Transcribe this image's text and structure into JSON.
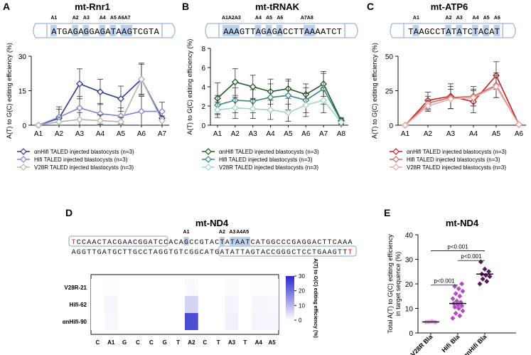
{
  "chart_data": [
    {
      "panel": "A",
      "type": "line",
      "title": "mt-Rnr1",
      "sequence": "ATGAGAGGAGATAAGTCGTA",
      "site_labels": [
        "A1",
        "A2",
        "A3",
        "A4",
        "A5",
        "A6A7"
      ],
      "highlight_positions": [
        0,
        4,
        6,
        9,
        11,
        13,
        14
      ],
      "categories": [
        "A1",
        "A2",
        "A3",
        "A4",
        "A5",
        "A6",
        "A7"
      ],
      "ylabel": "A(T) to G(C) editing efficiency (%)",
      "ylim": [
        0,
        30
      ],
      "yticks": [
        0,
        15,
        30
      ],
      "series": [
        {
          "name": "αnHifi TALED injected blastocysts (n=3)",
          "color": "#2b3a9a",
          "values": [
            0,
            3,
            18,
            14.5,
            11.5,
            20,
            3
          ],
          "err": [
            0,
            5,
            6.5,
            5.5,
            5.5,
            6.5,
            3
          ]
        },
        {
          "name": "Hifi TALED injected blastocysts (n=3)",
          "color": "#7d84d0",
          "values": [
            0,
            3.5,
            7.5,
            5,
            4,
            6,
            6
          ],
          "err": [
            0,
            3.5,
            5,
            4.5,
            3.5,
            6.5,
            4
          ]
        },
        {
          "name": "V28R TALED injected blastocysts (n=3)",
          "color": "#b4b4b4",
          "values": [
            0,
            1.5,
            2.5,
            2,
            1.5,
            20,
            2
          ],
          "err": [
            0,
            2,
            3,
            2.5,
            2,
            7,
            2
          ]
        }
      ]
    },
    {
      "panel": "B",
      "type": "line",
      "title": "mt-tRNAK",
      "sequence": "AAAGTTAGAGACCTTAAAATCT",
      "site_labels": [
        "A1A2A3",
        "A4",
        "A5",
        "A6",
        "A7A8"
      ],
      "highlight_positions": [
        0,
        1,
        2,
        6,
        8,
        10,
        15,
        16
      ],
      "categories": [
        "A1",
        "A2",
        "A3",
        "A4",
        "A5",
        "A6",
        "A7",
        "A8"
      ],
      "ylabel": "A(T) to G(C) editing efficiency (%)",
      "ylim": [
        0,
        8
      ],
      "yticks": [
        0,
        2,
        4,
        6,
        8
      ],
      "series": [
        {
          "name": "αnHifi TALED injected blastocysts (n=3)",
          "color": "#1f5a22",
          "values": [
            2.8,
            4.5,
            4,
            3.5,
            3.8,
            3.2,
            4.3,
            0.5
          ],
          "err": [
            1.6,
            1.4,
            1.2,
            1.3,
            1,
            1.1,
            1.3,
            0.3
          ]
        },
        {
          "name": "Hifi TALED injected blastocysts (n=3)",
          "color": "#2e8a7a",
          "values": [
            2.1,
            2.6,
            2.5,
            2.9,
            3.1,
            2.6,
            3.8,
            0.4
          ],
          "err": [
            1,
            1.3,
            1.2,
            1.4,
            1.5,
            1.3,
            1.6,
            0.3
          ]
        },
        {
          "name": "V28R TALED injected blastocysts (n=3)",
          "color": "#a3d4c8",
          "values": [
            1.6,
            1.8,
            1.7,
            1.6,
            1.3,
            2.1,
            2.6,
            0.3
          ],
          "err": [
            0.8,
            1.1,
            1,
            1,
            0.9,
            1.2,
            1.3,
            0.2
          ]
        }
      ]
    },
    {
      "panel": "C",
      "type": "line",
      "title": "mt-ATP6",
      "sequence": "TAAGCCTATATCTACAT",
      "site_labels": [
        "A1",
        "A2",
        "A3",
        "A4",
        "A5",
        "A6"
      ],
      "highlight_positions": [
        1,
        7,
        9,
        12,
        14,
        16
      ],
      "categories": [
        "A1",
        "A2",
        "A3",
        "A4",
        "A5",
        "A6"
      ],
      "ylabel": "A(T) to G(C) editing efficiency (%)",
      "ylim": [
        0,
        50
      ],
      "yticks": [
        0,
        25,
        50
      ],
      "series": [
        {
          "name": "αnHifi TALED injected blastocysts (n=3)",
          "color": "#c81c1c",
          "values": [
            0,
            18,
            21,
            17,
            36,
            0.5
          ],
          "err": [
            0,
            6,
            9,
            8,
            10,
            0.5
          ]
        },
        {
          "name": "Hifi TALED injected blastocysts (n=3)",
          "color": "#c86a6a",
          "values": [
            0,
            16,
            20,
            21,
            29,
            0.5
          ],
          "err": [
            0,
            5,
            8,
            7,
            9,
            0.5
          ]
        },
        {
          "name": "V28R TALED injected blastocysts (n=3)",
          "color": "#e8aaa0",
          "values": [
            0,
            14,
            19,
            20,
            28,
            0.5
          ],
          "err": [
            0,
            4,
            7,
            6,
            8,
            0.5
          ]
        }
      ]
    },
    {
      "panel": "D",
      "type": "heatmap",
      "title": "mt-ND4",
      "top_strand": "TCCAACTACGAACGGATCCACAGCCGTACTATAATCATGGCCCGAGGACTTCAAA",
      "bottom_strand": "AGGTTGATGCTTGCCTAGGTGTCGGCATGATATTAGTACCGGGCTCCTGAAGTTT",
      "site_labels": [
        "A1",
        "A2",
        "A3",
        "A4A5"
      ],
      "rows": [
        "V28R-21",
        "Hifi-62",
        "αnHifi-90"
      ],
      "columns": [
        "C",
        "A1",
        "G",
        "C",
        "C",
        "G",
        "T",
        "A2",
        "C",
        "T",
        "A3",
        "T",
        "A4",
        "A5"
      ],
      "values": [
        [
          0,
          0.3,
          0,
          0,
          0,
          0,
          0,
          0.8,
          0,
          0,
          0.4,
          0,
          0.3,
          0.3
        ],
        [
          0,
          1.2,
          0,
          0,
          0,
          0,
          0,
          6,
          0,
          0,
          1.5,
          0,
          1.2,
          1
        ],
        [
          0,
          1,
          0,
          0,
          0,
          0,
          0,
          25,
          0,
          0,
          1.8,
          0,
          1.4,
          1.1
        ]
      ],
      "colorbar": {
        "label": "A(T) to G(C) editing efficiency (%)",
        "ticks": [
          0,
          10,
          20,
          30
        ],
        "max": 30
      }
    },
    {
      "panel": "E",
      "type": "scatter",
      "title": "mt-ND4",
      "ylabel": "Total A(T) to G(C) editing efficiency in target sequence (%)",
      "ylim": [
        0,
        40
      ],
      "yticks": [
        0,
        10,
        20,
        30,
        40
      ],
      "categories": [
        "V28R Bla",
        "Hifi Bla",
        "αnHifi Bla"
      ],
      "groups": [
        {
          "name": "V28R Bla",
          "color": "#e8a4e8",
          "median": 4.5,
          "points": [
            4.4,
            4.6,
            4.5,
            4.3,
            4.7,
            4.5,
            4.4,
            4.6
          ]
        },
        {
          "name": "Hifi Bla",
          "color": "#b14ac4",
          "median": 12,
          "points": [
            6,
            7,
            8,
            9,
            10,
            10.5,
            11,
            11.5,
            12,
            12.5,
            13,
            14,
            15,
            16,
            17,
            18,
            19,
            20
          ]
        },
        {
          "name": "αnHifi Bla",
          "color": "#5a1460",
          "median": 24,
          "points": [
            20,
            21,
            22,
            23,
            23.5,
            24,
            25,
            26,
            29
          ]
        }
      ],
      "comparisons": [
        {
          "pair": [
            0,
            2
          ],
          "label": "p<0.001"
        },
        {
          "pair": [
            1,
            2
          ],
          "label": "p<0.001"
        },
        {
          "pair": [
            0,
            1
          ],
          "label": "p<0.001"
        }
      ]
    }
  ]
}
